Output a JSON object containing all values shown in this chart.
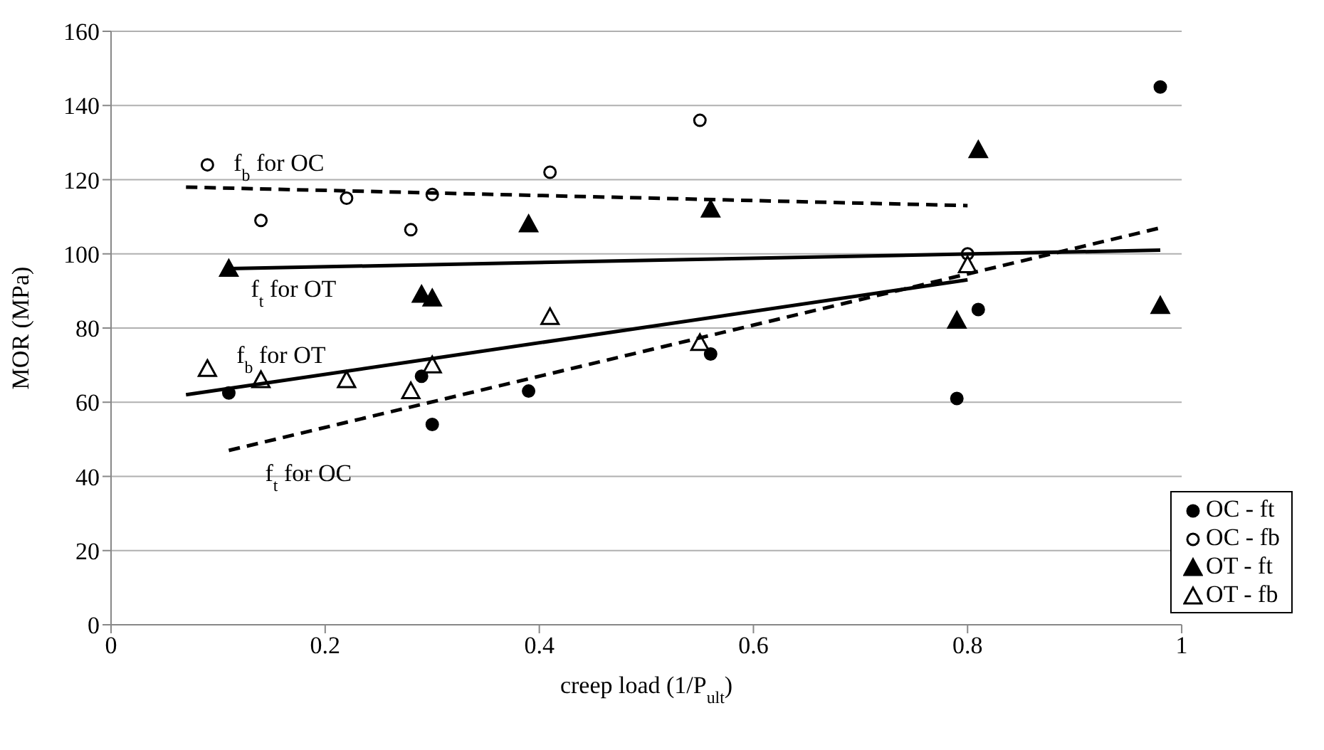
{
  "chart_data": {
    "type": "scatter",
    "xlabel": "creep load (1/P$_{ult}$)",
    "ylabel": "MOR (MPa)",
    "xlim": [
      0,
      1
    ],
    "xticks": [
      0,
      0.2,
      0.4,
      0.6,
      0.8,
      1
    ],
    "ylim": [
      0,
      160
    ],
    "yticks": [
      0,
      20,
      40,
      60,
      80,
      100,
      120,
      140,
      160
    ],
    "grid": "y",
    "legend": "bottom right",
    "series": [
      {
        "name": "OC - ft",
        "marker": "circle",
        "color": "#000000",
        "x": [
          0.11,
          0.29,
          0.3,
          0.39,
          0.56,
          0.79,
          0.81,
          0.98
        ],
        "values": [
          62.5,
          67,
          54,
          63,
          73,
          61,
          85,
          145
        ]
      },
      {
        "name": "OC - fb",
        "marker": "circle",
        "color": "#ffffff",
        "x": [
          0.09,
          0.14,
          0.22,
          0.28,
          0.3,
          0.41,
          0.55,
          0.8
        ],
        "values": [
          124,
          109,
          115,
          106.5,
          116,
          122,
          136,
          100
        ]
      },
      {
        "name": "OT - ft",
        "marker": "triangle",
        "color": "#000000",
        "x": [
          0.11,
          0.29,
          0.3,
          0.39,
          0.56,
          0.79,
          0.81,
          0.98
        ],
        "values": [
          96,
          89,
          88,
          108,
          112,
          82,
          128,
          86
        ]
      },
      {
        "name": "OT - fb",
        "marker": "triangle",
        "color": "#ffffff",
        "x": [
          0.09,
          0.14,
          0.22,
          0.28,
          0.3,
          0.41,
          0.55,
          0.8
        ],
        "values": [
          69,
          66,
          66,
          63,
          70,
          83,
          76,
          97
        ]
      },
      {
        "name": "f$_{b}$ for OC",
        "type": "line",
        "line_style": "dashed",
        "color": "#000000",
        "x": [
          0.07,
          0.8
        ],
        "values": [
          118,
          113
        ]
      },
      {
        "name": "f$_{t}$ for OT",
        "type": "line",
        "line_style": "solid",
        "color": "#000000",
        "x": [
          0.11,
          0.98
        ],
        "values": [
          96,
          101
        ]
      },
      {
        "name": "f$_{b}$ for OT",
        "type": "line",
        "line_style": "solid",
        "color": "#000000",
        "x": [
          0.07,
          0.8
        ],
        "values": [
          62,
          93
        ]
      },
      {
        "name": "f$_{t}$ for OC",
        "type": "line",
        "line_style": "dashed",
        "color": "#000000",
        "x": [
          0.11,
          0.98
        ],
        "values": [
          47,
          107
        ]
      }
    ]
  }
}
